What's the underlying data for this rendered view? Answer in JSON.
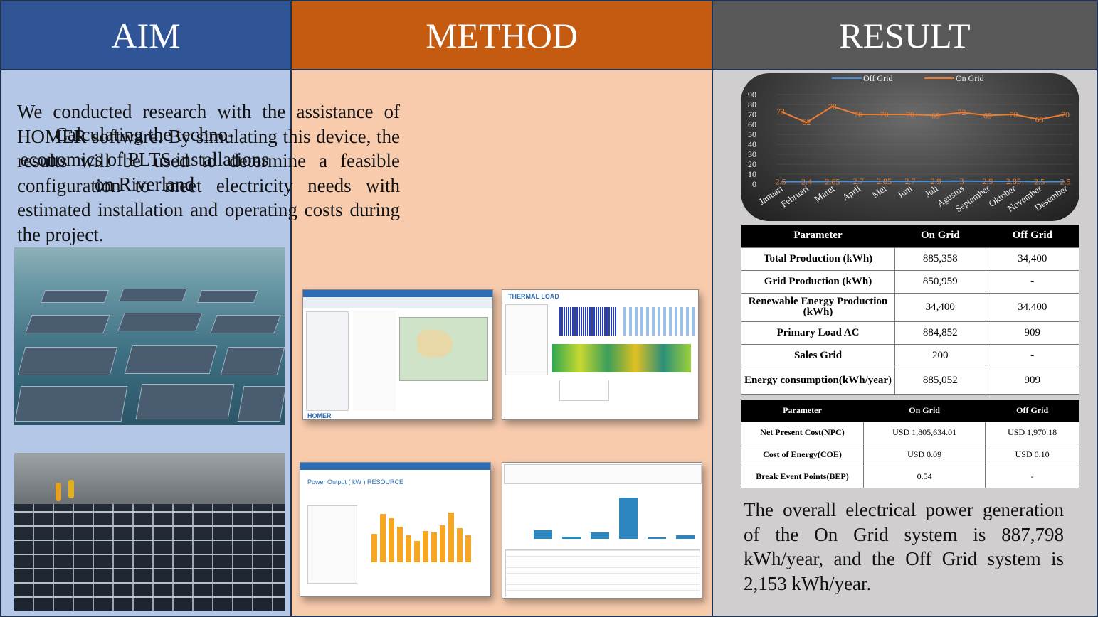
{
  "aim": {
    "heading": "AIM",
    "text": "Calculating the techno-economics of PLTS installations on Riverland"
  },
  "method": {
    "heading": "METHOD",
    "text": "We conducted research with the assistance of HOMER software. By simulating this device, the results will be used to determine a feasible configuration to meet electricity needs with estimated installation and operating costs during the project.",
    "screens": {
      "thermal_label": "THERMAL LOAD",
      "power_label": "Power Output ( kW ) RESOURCE",
      "homer_label": "HOMER"
    }
  },
  "result": {
    "heading": "RESULT",
    "text": "The overall electrical power generation of the On Grid system is 887,798 kWh/year, and the Off Grid system is 2,153 kWh/year."
  },
  "chart_data": {
    "type": "line",
    "categories": [
      "Januari",
      "Februari",
      "Maret",
      "April",
      "Mei",
      "Juni",
      "Juli",
      "Agustus",
      "September",
      "Oktober",
      "November",
      "Desember"
    ],
    "series": [
      {
        "name": "Off Grid",
        "color": "#4a90d9",
        "values": [
          2.5,
          2.4,
          2.65,
          2.7,
          2.85,
          2.7,
          2.9,
          3,
          2.9,
          2.85,
          2.5,
          2.5
        ],
        "labels": [
          "2.5",
          "2.4",
          "2.65",
          "2.7",
          "2.85",
          "2.7",
          "2.9",
          "3",
          "2.9",
          "2.85",
          "2.5",
          "2.5"
        ]
      },
      {
        "name": "On Grid",
        "color": "#ed7d31",
        "values": [
          73,
          62,
          78,
          70,
          70,
          70,
          69,
          72,
          69,
          70,
          65,
          70
        ],
        "labels": [
          "73",
          "62",
          "78",
          "70",
          "70",
          "70",
          "69",
          "72",
          "69",
          "70",
          "65",
          "70"
        ]
      }
    ],
    "ylim": [
      0,
      90
    ],
    "yticks": [
      "0",
      "10",
      "20",
      "30",
      "40",
      "50",
      "60",
      "70",
      "80",
      "90"
    ],
    "legend": "top"
  },
  "table1": {
    "headers": [
      "Parameter",
      "On Grid",
      "Off Grid"
    ],
    "rows": [
      [
        "Total Production (kWh)",
        "885,358",
        "34,400"
      ],
      [
        "Grid Production (kWh)",
        "850,959",
        "-"
      ],
      [
        "Renewable Energy Production (kWh)",
        "34,400",
        "34,400"
      ],
      [
        "Primary Load AC",
        "884,852",
        "909"
      ],
      [
        "Sales Grid",
        "200",
        "-"
      ],
      [
        "Energy consumption(kWh/year)",
        "885,052",
        "909"
      ]
    ]
  },
  "table2": {
    "headers": [
      "Parameter",
      "On Grid",
      "Off Grid"
    ],
    "rows": [
      [
        "Net Present Cost(NPC)",
        "USD 1,805,634.01",
        "USD 1,970.18"
      ],
      [
        "Cost of Energy(COE)",
        "USD 0.09",
        "USD 0.10"
      ],
      [
        "Break Event Points(BEP)",
        "0.54",
        "-"
      ]
    ]
  }
}
